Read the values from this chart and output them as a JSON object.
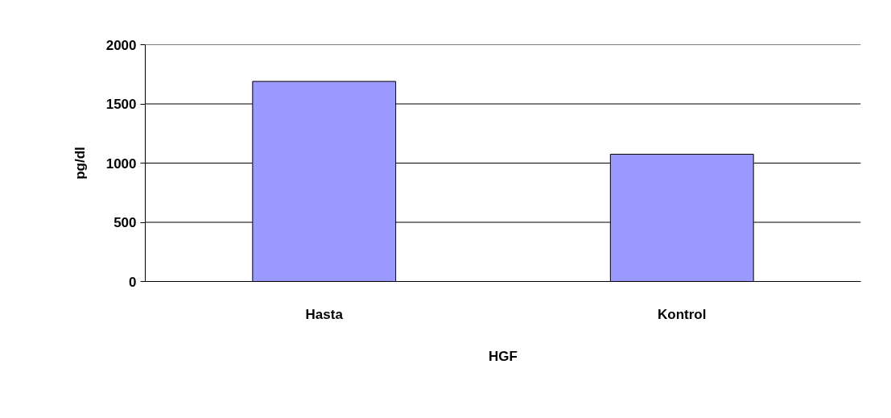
{
  "chart_data": {
    "type": "bar",
    "xlabel": "HGF",
    "ylabel": "pg/dl",
    "categories": [
      "Hasta",
      "Kontrol"
    ],
    "values": [
      1690,
      1075
    ],
    "color": "#9999ff",
    "ylim": [
      0,
      2000
    ],
    "yticks": [
      0,
      500,
      1000,
      1500,
      2000
    ],
    "grid": "y"
  }
}
